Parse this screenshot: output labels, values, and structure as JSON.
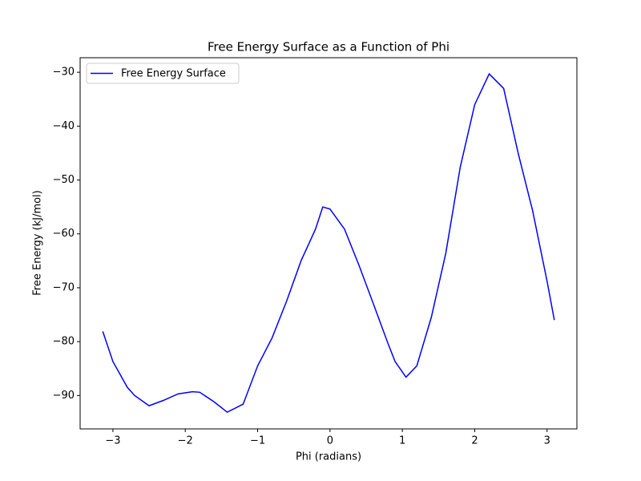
{
  "chart_data": {
    "type": "line",
    "title": "Free Energy Surface as a Function of Phi",
    "xlabel": "Phi (radians)",
    "ylabel": "Free Energy (kJ/mol)",
    "x": [
      -3.14,
      -3.0,
      -2.8,
      -2.7,
      -2.5,
      -2.3,
      -2.1,
      -1.9,
      -1.8,
      -1.6,
      -1.42,
      -1.2,
      -1.0,
      -0.8,
      -0.6,
      -0.4,
      -0.2,
      -0.1,
      0.0,
      0.2,
      0.4,
      0.6,
      0.8,
      0.9,
      1.05,
      1.2,
      1.4,
      1.6,
      1.8,
      2.0,
      2.2,
      2.4,
      2.6,
      2.8,
      3.0,
      3.1
    ],
    "series": [
      {
        "name": "Free Energy Surface",
        "color": "#0000ff",
        "values": [
          -78.1,
          -83.7,
          -88.5,
          -90.0,
          -91.9,
          -90.9,
          -89.7,
          -89.3,
          -89.4,
          -91.2,
          -93.1,
          -91.6,
          -84.5,
          -79.3,
          -72.5,
          -65.0,
          -59.1,
          -55.0,
          -55.4,
          -59.1,
          -65.8,
          -73.0,
          -80.3,
          -83.7,
          -86.6,
          -84.5,
          -75.5,
          -63.6,
          -47.6,
          -36.0,
          -30.3,
          -33.0,
          -45.0,
          -55.7,
          -68.8,
          -76.0
        ]
      }
    ],
    "xlim": [
      -3.453,
      3.412
    ],
    "ylim": [
      -96.2,
      -27.3
    ],
    "xticks": [
      {
        "value": -3,
        "label": "−3"
      },
      {
        "value": -2,
        "label": "−2"
      },
      {
        "value": -1,
        "label": "−1"
      },
      0,
      1,
      2,
      3
    ],
    "yticks": [
      {
        "value": -90,
        "label": "−90"
      },
      {
        "value": -80,
        "label": "−80"
      },
      {
        "value": -70,
        "label": "−70"
      },
      {
        "value": -60,
        "label": "−60"
      },
      {
        "value": -50,
        "label": "−50"
      },
      {
        "value": -40,
        "label": "−40"
      },
      {
        "value": -30,
        "label": "−30"
      }
    ],
    "legend": "upper left"
  }
}
